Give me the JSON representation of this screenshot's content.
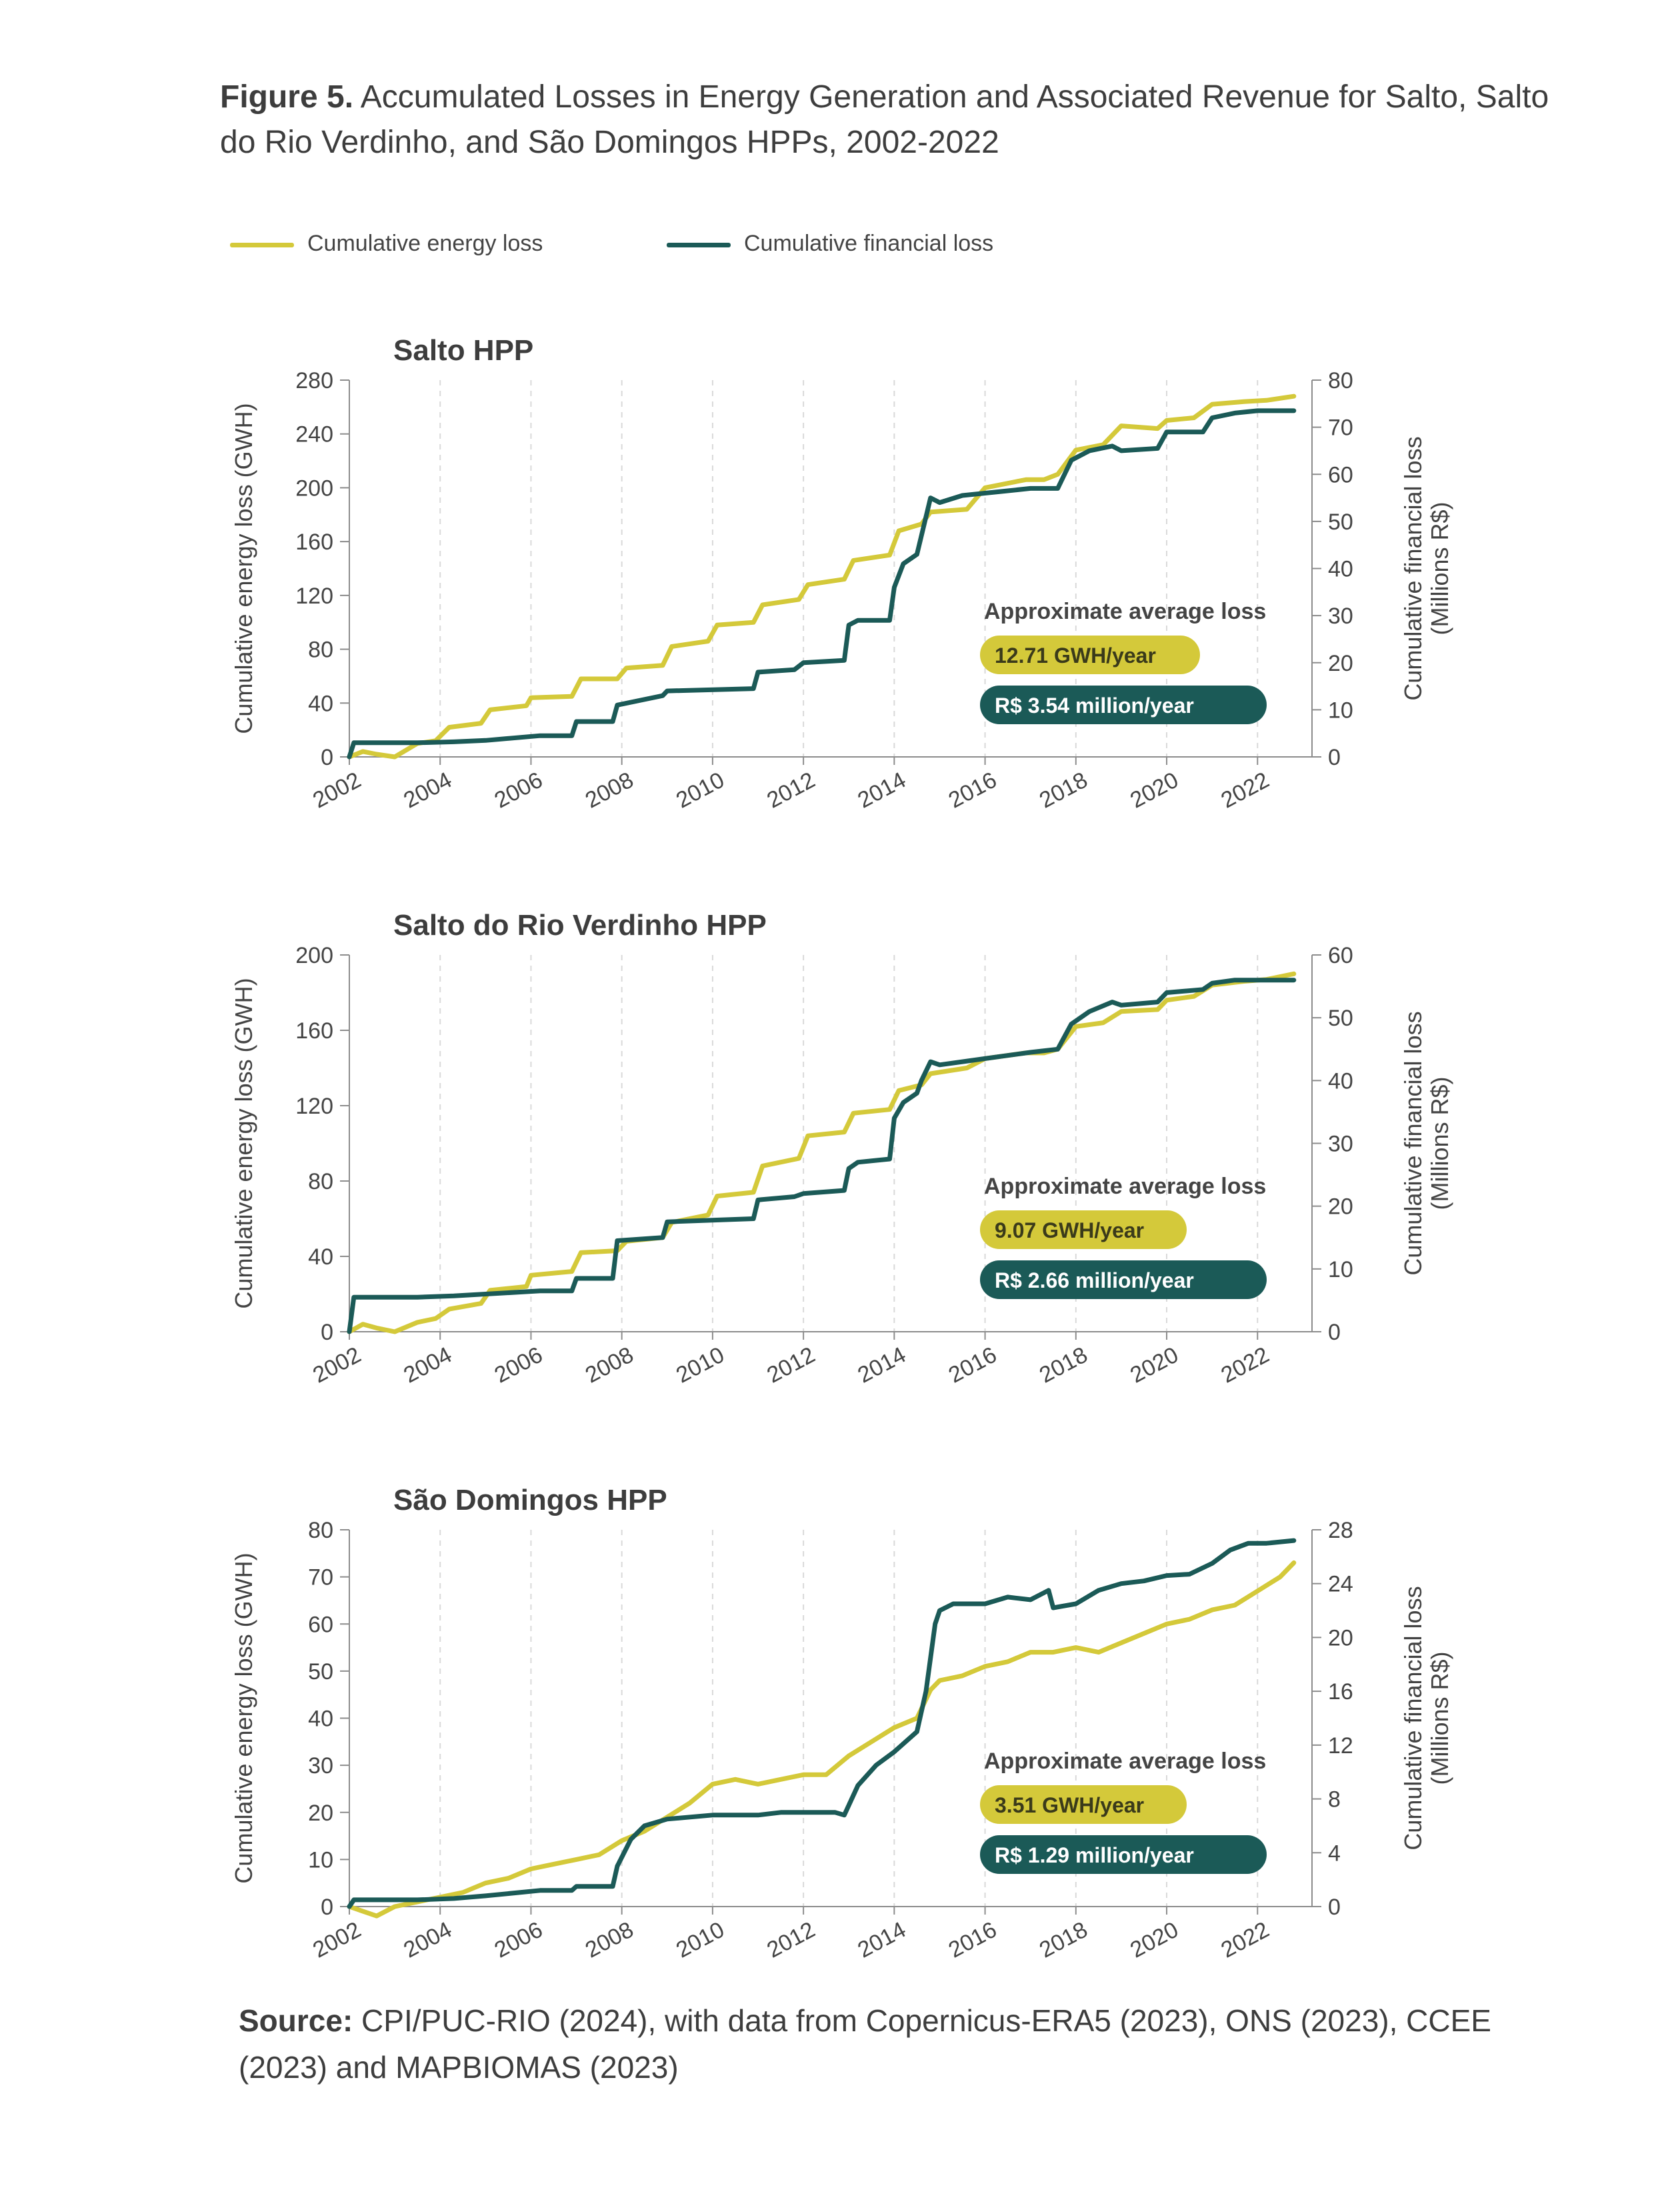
{
  "figure": {
    "label": "Figure 5.",
    "title": "Accumulated Losses in Energy Generation and Associated Revenue for Salto, Salto do Rio Verdinho, and São Domingos HPPs, 2002-2022"
  },
  "legend": {
    "energy": "Cumulative energy loss",
    "financial": "Cumulative financial loss"
  },
  "colors": {
    "energy": "#d4c93a",
    "financial": "#1b5a57",
    "grid": "#d9d9d9",
    "axis": "#8c8c8c",
    "text": "#444444"
  },
  "source": {
    "label": "Source:",
    "text": "CPI/PUC-RIO (2024), with data from Copernicus-ERA5 (2023), ONS (2023), CCEE (2023) and MAPBIOMAS (2023)"
  },
  "chart_data": [
    {
      "type": "line",
      "title": "Salto HPP",
      "ylabel": "Cumulative energy loss (GWH)",
      "y2label": "Cumulative financial loss (Millions R$)",
      "xlim": [
        2002,
        2023.2
      ],
      "ylim": [
        0,
        280
      ],
      "y2lim": [
        0,
        80
      ],
      "xticks": [
        "2002",
        "2004",
        "2006",
        "2008",
        "2010",
        "2012",
        "2014",
        "2016",
        "2018",
        "2020",
        "2022"
      ],
      "yticks": [
        "0",
        "40",
        "80",
        "120",
        "160",
        "200",
        "240",
        "280"
      ],
      "y2ticks": [
        "0",
        "10",
        "20",
        "30",
        "40",
        "50",
        "60",
        "70",
        "80"
      ],
      "annotation": {
        "label": "Approximate average loss",
        "energy": "12.71 GWH/year",
        "financial": "R$ 3.54 million/year"
      },
      "grid": "vertical dashed",
      "series": [
        {
          "name": "Cumulative energy loss",
          "axis": "left",
          "x": [
            2002.0,
            2002.3,
            2002.6,
            2003.0,
            2003.5,
            2003.9,
            2004.2,
            2004.9,
            2005.1,
            2005.9,
            2006.0,
            2006.9,
            2007.1,
            2007.9,
            2008.1,
            2008.9,
            2009.1,
            2009.9,
            2010.1,
            2010.9,
            2011.1,
            2011.9,
            2012.1,
            2012.9,
            2013.1,
            2013.9,
            2014.1,
            2014.6,
            2014.8,
            2015.6,
            2016.0,
            2016.9,
            2017.3,
            2017.6,
            2018.0,
            2018.6,
            2019.0,
            2019.8,
            2020.0,
            2020.6,
            2021.0,
            2021.7,
            2022.2,
            2022.8
          ],
          "y": [
            0,
            4,
            2,
            0,
            10,
            12,
            22,
            25,
            35,
            38,
            44,
            45,
            58,
            58,
            66,
            68,
            82,
            86,
            98,
            100,
            113,
            117,
            128,
            132,
            146,
            150,
            168,
            173,
            182,
            184,
            200,
            206,
            206,
            210,
            228,
            232,
            246,
            244,
            250,
            252,
            262,
            264,
            265,
            268
          ]
        },
        {
          "name": "Cumulative financial loss",
          "axis": "right",
          "x": [
            2002.0,
            2002.1,
            2003.5,
            2004.3,
            2005.0,
            2006.2,
            2006.9,
            2007.0,
            2007.8,
            2007.9,
            2008.9,
            2009.0,
            2010.9,
            2011.0,
            2011.8,
            2012.0,
            2012.9,
            2013.0,
            2013.2,
            2013.9,
            2014.0,
            2014.2,
            2014.5,
            2014.6,
            2014.8,
            2015.0,
            2015.5,
            2016.0,
            2016.5,
            2017.0,
            2017.6,
            2017.9,
            2018.3,
            2018.8,
            2019.0,
            2019.8,
            2020.0,
            2020.8,
            2021.0,
            2021.5,
            2022.0,
            2022.8
          ],
          "y": [
            0,
            3,
            3,
            3.2,
            3.5,
            4.5,
            4.5,
            7.5,
            7.5,
            11,
            13,
            14,
            14.5,
            18,
            18.5,
            20,
            20.5,
            28,
            29,
            29,
            36,
            41,
            43,
            47,
            55,
            54,
            55.5,
            56,
            56.5,
            57,
            57,
            63,
            65,
            66,
            65,
            65.5,
            69,
            69,
            72,
            73,
            73.5,
            73.5
          ]
        }
      ]
    },
    {
      "type": "line",
      "title": "Salto do Rio Verdinho HPP",
      "ylabel": "Cumulative energy loss (GWH)",
      "y2label": "Cumulative financial loss (Millions R$)",
      "xlim": [
        2002,
        2023.2
      ],
      "ylim": [
        0,
        200
      ],
      "y2lim": [
        0,
        60
      ],
      "xticks": [
        "2002",
        "2004",
        "2006",
        "2008",
        "2010",
        "2012",
        "2014",
        "2016",
        "2018",
        "2020",
        "2022"
      ],
      "yticks": [
        "0",
        "40",
        "80",
        "120",
        "160",
        "200"
      ],
      "y2ticks": [
        "0",
        "10",
        "20",
        "30",
        "40",
        "50",
        "60"
      ],
      "annotation": {
        "label": "Approximate average loss",
        "energy": "9.07 GWH/year",
        "financial": "R$ 2.66 million/year"
      },
      "grid": "vertical dashed",
      "series": [
        {
          "name": "Cumulative energy loss",
          "axis": "left",
          "x": [
            2002.0,
            2002.3,
            2002.6,
            2003.0,
            2003.5,
            2003.9,
            2004.2,
            2004.9,
            2005.1,
            2005.9,
            2006.0,
            2006.9,
            2007.1,
            2007.9,
            2008.1,
            2008.9,
            2009.1,
            2009.9,
            2010.1,
            2010.9,
            2011.1,
            2011.9,
            2012.1,
            2012.9,
            2013.1,
            2013.9,
            2014.1,
            2014.6,
            2014.8,
            2015.6,
            2016.0,
            2016.9,
            2017.3,
            2017.6,
            2018.0,
            2018.6,
            2019.0,
            2019.8,
            2020.0,
            2020.6,
            2021.0,
            2021.7,
            2022.2,
            2022.8
          ],
          "y": [
            0,
            4,
            2,
            0,
            5,
            7,
            12,
            15,
            22,
            24,
            30,
            32,
            42,
            43,
            48,
            50,
            58,
            62,
            72,
            74,
            88,
            92,
            104,
            106,
            116,
            118,
            128,
            131,
            137,
            140,
            145,
            148,
            148,
            150,
            162,
            164,
            170,
            171,
            176,
            178,
            184,
            186,
            187,
            190
          ]
        },
        {
          "name": "Cumulative financial loss",
          "axis": "right",
          "x": [
            2002.0,
            2002.1,
            2003.5,
            2004.3,
            2005.0,
            2006.2,
            2006.9,
            2007.0,
            2007.8,
            2007.9,
            2008.9,
            2009.0,
            2010.9,
            2011.0,
            2011.8,
            2012.0,
            2012.9,
            2013.0,
            2013.2,
            2013.9,
            2014.0,
            2014.2,
            2014.5,
            2014.6,
            2014.8,
            2015.0,
            2015.5,
            2016.0,
            2016.5,
            2017.0,
            2017.6,
            2017.9,
            2018.3,
            2018.8,
            2019.0,
            2019.8,
            2020.0,
            2020.8,
            2021.0,
            2021.5,
            2022.0,
            2022.8
          ],
          "y": [
            0,
            5.5,
            5.5,
            5.7,
            6,
            6.5,
            6.5,
            8.5,
            8.5,
            14.5,
            15,
            17.5,
            18,
            21,
            21.5,
            22,
            22.5,
            26,
            27,
            27.5,
            34,
            36.5,
            38,
            40,
            43,
            42.5,
            43,
            43.5,
            44,
            44.5,
            45,
            49,
            51,
            52.5,
            52,
            52.5,
            54,
            54.5,
            55.5,
            56,
            56,
            56
          ]
        }
      ]
    },
    {
      "type": "line",
      "title": "São Domingos HPP",
      "ylabel": "Cumulative energy loss (GWH)",
      "y2label": "Cumulative financial loss (Millions R$)",
      "xlim": [
        2002,
        2023.2
      ],
      "ylim": [
        0,
        80
      ],
      "y2lim": [
        0,
        28
      ],
      "xticks": [
        "2002",
        "2004",
        "2006",
        "2008",
        "2010",
        "2012",
        "2014",
        "2016",
        "2018",
        "2020",
        "2022"
      ],
      "yticks": [
        "0",
        "10",
        "20",
        "30",
        "40",
        "50",
        "60",
        "70",
        "80"
      ],
      "y2ticks": [
        "0",
        "4",
        "8",
        "12",
        "16",
        "20",
        "24",
        "28"
      ],
      "annotation": {
        "label": "Approximate average loss",
        "energy": "3.51 GWH/year",
        "financial": "R$ 1.29 million/year"
      },
      "grid": "vertical dashed",
      "series": [
        {
          "name": "Cumulative energy loss",
          "axis": "left",
          "x": [
            2002.0,
            2002.3,
            2002.6,
            2003.0,
            2003.5,
            2004.0,
            2004.5,
            2005.0,
            2005.5,
            2006.0,
            2006.5,
            2007.0,
            2007.5,
            2008.0,
            2008.5,
            2009.0,
            2009.5,
            2010.0,
            2010.5,
            2011.0,
            2011.5,
            2012.0,
            2012.5,
            2013.0,
            2013.5,
            2014.0,
            2014.5,
            2014.8,
            2015.0,
            2015.5,
            2016.0,
            2016.5,
            2017.0,
            2017.5,
            2018.0,
            2018.5,
            2019.0,
            2019.5,
            2020.0,
            2020.5,
            2021.0,
            2021.5,
            2022.0,
            2022.5,
            2022.8
          ],
          "y": [
            0,
            -1,
            -2,
            0,
            1,
            2,
            3,
            5,
            6,
            8,
            9,
            10,
            11,
            14,
            16,
            19,
            22,
            26,
            27,
            26,
            27,
            28,
            28,
            32,
            35,
            38,
            40,
            46,
            48,
            49,
            51,
            52,
            54,
            54,
            55,
            54,
            56,
            58,
            60,
            61,
            63,
            64,
            67,
            70,
            73
          ]
        },
        {
          "name": "Cumulative financial loss",
          "axis": "right",
          "x": [
            2002.0,
            2002.1,
            2003.5,
            2004.3,
            2005.0,
            2006.2,
            2006.9,
            2007.0,
            2007.8,
            2007.9,
            2008.2,
            2008.5,
            2009.0,
            2010.0,
            2010.5,
            2011.0,
            2011.5,
            2012.0,
            2012.7,
            2012.9,
            2013.2,
            2013.6,
            2014.0,
            2014.5,
            2014.7,
            2014.9,
            2015.0,
            2015.3,
            2016.0,
            2016.5,
            2017.0,
            2017.4,
            2017.5,
            2018.0,
            2018.5,
            2019.0,
            2019.5,
            2020.0,
            2020.5,
            2021.0,
            2021.4,
            2021.8,
            2022.2,
            2022.8
          ],
          "y": [
            0,
            0.5,
            0.5,
            0.6,
            0.8,
            1.2,
            1.2,
            1.5,
            1.5,
            3,
            5,
            6,
            6.5,
            6.8,
            6.8,
            6.8,
            7,
            7,
            7,
            6.8,
            9,
            10.5,
            11.5,
            13,
            16,
            21,
            22,
            22.5,
            22.5,
            23,
            22.8,
            23.5,
            22.2,
            22.5,
            23.5,
            24,
            24.2,
            24.6,
            24.7,
            25.5,
            26.5,
            27,
            27,
            27.2
          ]
        }
      ]
    }
  ]
}
